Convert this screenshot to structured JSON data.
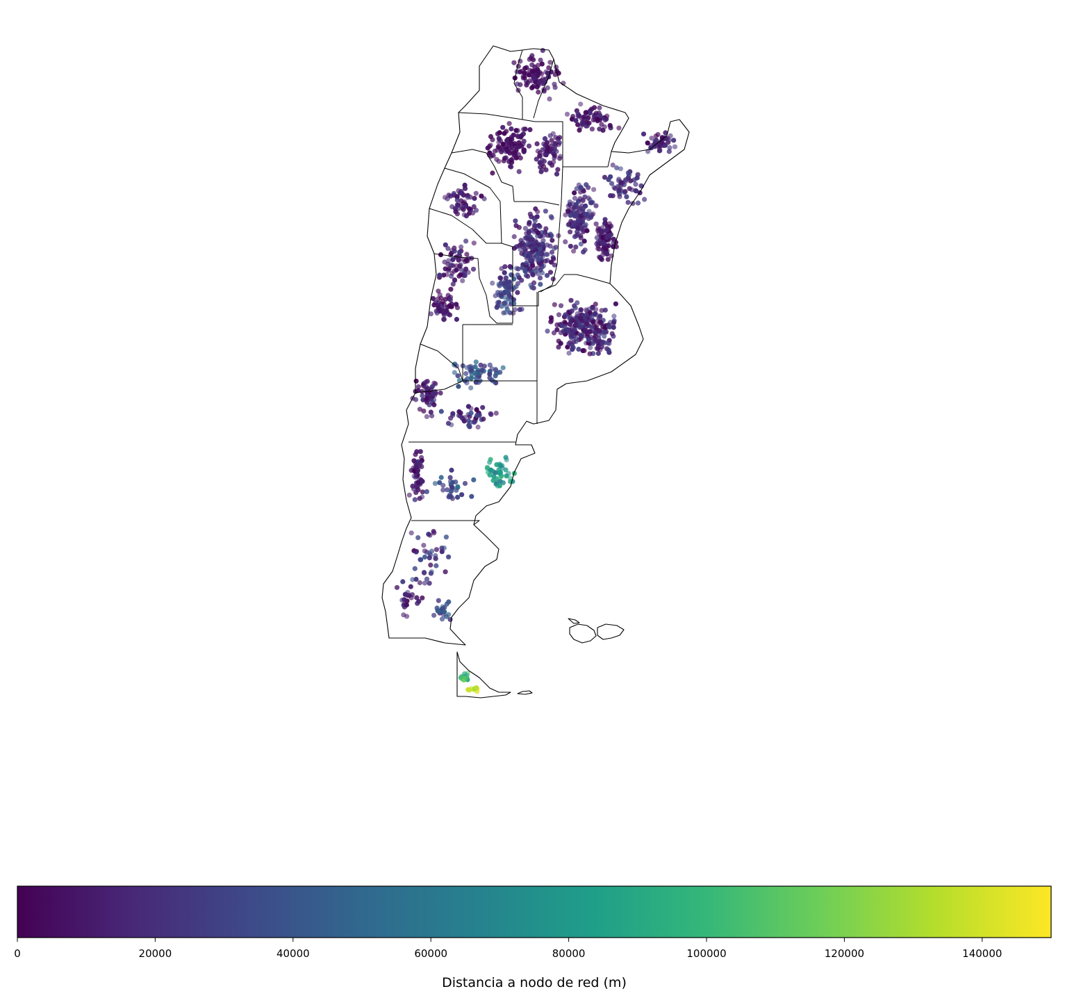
{
  "colorbar": {
    "label": "Distancia a nodo de red (m)",
    "min": 0,
    "max": 150000,
    "ticks": [
      {
        "value": 0,
        "label": "0"
      },
      {
        "value": 20000,
        "label": "20000"
      },
      {
        "value": 40000,
        "label": "40000"
      },
      {
        "value": 60000,
        "label": "60000"
      },
      {
        "value": 80000,
        "label": "80000"
      },
      {
        "value": 100000,
        "label": "100000"
      },
      {
        "value": 120000,
        "label": "120000"
      },
      {
        "value": 140000,
        "label": "140000"
      }
    ],
    "colormap": [
      "#440154",
      "#482878",
      "#3e4989",
      "#31688e",
      "#26828e",
      "#1f9e89",
      "#35b779",
      "#6ece58",
      "#b5de2b",
      "#fde725"
    ]
  },
  "map": {
    "point_color_low": "#440154",
    "point_color_high": "#fde725",
    "border_color": "#000000"
  }
}
